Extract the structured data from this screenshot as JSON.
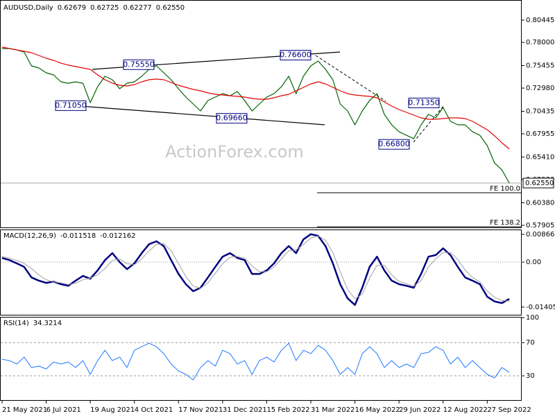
{
  "chart_data": [
    {
      "type": "line",
      "title": "AUDUSD,Daily",
      "header_values": [
        {
          "value": 0.62679,
          "label": "0.62679"
        },
        {
          "value": 0.62725,
          "label": "0.62725"
        },
        {
          "value": 0.62277,
          "label": "0.62277"
        },
        {
          "value": 0.6255,
          "label": "0.62550"
        }
      ],
      "watermark": "ActionForex.com",
      "xlim": [
        0,
        70.5
      ],
      "ylim": [
        0.57677,
        0.82654
      ],
      "yticks": [
        {
          "value": 0.80445,
          "label": "0.80445"
        },
        {
          "value": 0.78,
          "label": "0.78000"
        },
        {
          "value": 0.75455,
          "label": "0.75455"
        },
        {
          "value": 0.7298,
          "label": "0.72980"
        },
        {
          "value": 0.70435,
          "label": "0.70435"
        },
        {
          "value": 0.67955,
          "label": "0.67955"
        },
        {
          "value": 0.6541,
          "label": "0.65410"
        },
        {
          "value": 0.6293,
          "label": "0.62930"
        },
        {
          "value": 0.6038,
          "label": "0.60380"
        },
        {
          "value": 0.57905,
          "label": "0.57905"
        }
      ],
      "series": [
        {
          "color": "#006400",
          "width": 1.2,
          "values": [
            0.7732,
            0.7732,
            0.7717,
            0.7694,
            0.7542,
            0.7519,
            0.7466,
            0.7443,
            0.7367,
            0.7351,
            0.7367,
            0.7351,
            0.7138,
            0.7313,
            0.7428,
            0.739,
            0.7291,
            0.7351,
            0.7367,
            0.7428,
            0.7504,
            0.7542,
            0.7466,
            0.739,
            0.7291,
            0.7199,
            0.7123,
            0.7047,
            0.7161,
            0.7199,
            0.7237,
            0.7214,
            0.726,
            0.7161,
            0.7047,
            0.7123,
            0.7199,
            0.7237,
            0.7313,
            0.7428,
            0.7237,
            0.7428,
            0.7542,
            0.7595,
            0.7504,
            0.739,
            0.7123,
            0.7047,
            0.6895,
            0.7047,
            0.7161,
            0.7237,
            0.7009,
            0.6895,
            0.6818,
            0.678,
            0.6742,
            0.6895,
            0.7009,
            0.6971,
            0.7085,
            0.6933,
            0.6895,
            0.6895,
            0.6818,
            0.678,
            0.6666,
            0.6475,
            0.6399,
            0.6255
          ]
        },
        {
          "color": "#e00000",
          "width": 1.2,
          "values": [
            0.7748,
            0.7732,
            0.7717,
            0.7702,
            0.7687,
            0.7656,
            0.7626,
            0.7603,
            0.7572,
            0.755,
            0.7534,
            0.7519,
            0.7504,
            0.7443,
            0.739,
            0.7352,
            0.7329,
            0.7321,
            0.7336,
            0.7367,
            0.739,
            0.7397,
            0.739,
            0.7359,
            0.7329,
            0.7306,
            0.7283,
            0.7268,
            0.7245,
            0.723,
            0.7222,
            0.7214,
            0.7207,
            0.7199,
            0.7184,
            0.7176,
            0.7176,
            0.7192,
            0.7214,
            0.723,
            0.7268,
            0.7306,
            0.7344,
            0.7367,
            0.7344,
            0.7306,
            0.7268,
            0.7237,
            0.7222,
            0.7214,
            0.7207,
            0.7192,
            0.7146,
            0.71,
            0.7062,
            0.7032,
            0.7001,
            0.6971,
            0.6956,
            0.6956,
            0.6963,
            0.6971,
            0.6971,
            0.6963,
            0.6933,
            0.6887,
            0.6841,
            0.6773,
            0.6697,
            0.6628
          ]
        }
      ],
      "annotations": [
        {
          "value": 0.7555,
          "label": "0.75550"
        },
        {
          "value": 0.766,
          "label": "0.76600"
        },
        {
          "value": 0.7105,
          "label": "0.71050"
        },
        {
          "value": 0.6966,
          "label": "0.69660"
        },
        {
          "value": 0.7135,
          "label": "0.71350"
        },
        {
          "value": 0.668,
          "label": "0.66800"
        }
      ],
      "levels": [
        {
          "value": 0.6148,
          "label": "FE 100.0"
        },
        {
          "value": 0.5775,
          "label": "FE 138.2"
        }
      ],
      "last_price": {
        "value": 0.6255,
        "label": "0.62550"
      }
    },
    {
      "type": "line",
      "title": "MACD(12,26,9)",
      "header_values": [
        -0.011518,
        -0.012162
      ],
      "xlim": [
        0,
        70.5
      ],
      "ylim": [
        -0.01667,
        0.01018
      ],
      "yticks": [
        0.008662,
        {
          "value": 0,
          "label": "0.00"
        },
        -0.014055
      ],
      "series": [
        {
          "color": "#000080",
          "width": 2.5,
          "values": [
            0.0013,
            0.0006,
            -0.0004,
            -0.0015,
            -0.0048,
            -0.0058,
            -0.0065,
            -0.0061,
            -0.0069,
            -0.0074,
            -0.0058,
            -0.0043,
            -0.0052,
            -0.0026,
            0.0006,
            0.0028,
            0,
            -0.0022,
            -0.0004,
            0.0028,
            0.0056,
            0.0065,
            0.005,
            0.0006,
            -0.0037,
            -0.0069,
            -0.0091,
            -0.008,
            -0.0048,
            -0.0015,
            0.0017,
            0.0028,
            0.0013,
            0.0006,
            -0.0037,
            -0.0037,
            -0.0026,
            -0.0004,
            0.0028,
            0.005,
            0.0028,
            0.0071,
            0.0087,
            0.0082,
            0.005,
            -0.0004,
            -0.0069,
            -0.0113,
            -0.0134,
            -0.008,
            -0.0015,
            0.0017,
            -0.0026,
            -0.0058,
            -0.0069,
            -0.0074,
            -0.008,
            -0.0037,
            0.0017,
            0.0022,
            0.0043,
            0.0022,
            -0.0015,
            -0.0048,
            -0.0058,
            -0.0069,
            -0.0108,
            -0.0123,
            -0.0128,
            -0.0115
          ]
        },
        {
          "color": "#a0a0a0",
          "width": 1,
          "values": [
            0.0018,
            0.0012,
            0.0005,
            -0.0004,
            -0.002,
            -0.004,
            -0.0055,
            -0.0062,
            -0.0065,
            -0.007,
            -0.0066,
            -0.0055,
            -0.005,
            -0.004,
            -0.002,
            0.0005,
            0.001,
            -0.0005,
            -0.0008,
            0.001,
            0.0035,
            0.0055,
            0.0058,
            0.0035,
            -0.0005,
            -0.0045,
            -0.0075,
            -0.0082,
            -0.0065,
            -0.0035,
            -0.0005,
            0.0015,
            0.0018,
            0.0012,
            -0.0012,
            -0.003,
            -0.003,
            -0.0015,
            0.001,
            0.0035,
            0.0038,
            0.0055,
            0.0075,
            0.0082,
            0.0068,
            0.003,
            -0.003,
            -0.0085,
            -0.0115,
            -0.01,
            -0.005,
            -0.001,
            -0.001,
            -0.004,
            -0.006,
            -0.0068,
            -0.0075,
            -0.0058,
            -0.0015,
            0.001,
            0.003,
            0.003,
            0.0008,
            -0.0025,
            -0.0048,
            -0.0062,
            -0.009,
            -0.011,
            -0.012,
            -0.0122
          ]
        }
      ]
    },
    {
      "type": "line",
      "title": "RSI(14)",
      "header_values": [
        34.3214
      ],
      "xlim": [
        0,
        70.5
      ],
      "ylim": [
        0,
        101
      ],
      "yticks": [
        100,
        70,
        30
      ],
      "dashed_levels": [
        70,
        30
      ],
      "xticks": [
        {
          "value": 0,
          "label": "21 May 2021"
        },
        {
          "value": 6,
          "label": "6 Jul 2021"
        },
        {
          "value": 12,
          "label": "19 Aug 2021"
        },
        {
          "value": 18,
          "label": "4 Oct 2021"
        },
        {
          "value": 24,
          "label": "17 Nov 2021"
        },
        {
          "value": 30,
          "label": "31 Dec 2021"
        },
        {
          "value": 36,
          "label": "15 Feb 2022"
        },
        {
          "value": 42,
          "label": "31 Mar 2022"
        },
        {
          "value": 48,
          "label": "16 May 2022"
        },
        {
          "value": 54,
          "label": "29 Jun 2022"
        },
        {
          "value": 60,
          "label": "12 Aug 2022"
        },
        {
          "value": 66,
          "label": "27 Sep 2022"
        }
      ],
      "series": [
        {
          "color": "#1e78ff",
          "width": 1,
          "values": [
            50,
            48.3,
            44.2,
            52.5,
            40,
            41.7,
            38.3,
            46.7,
            44.2,
            46.7,
            40,
            48.3,
            31.7,
            48.3,
            60.8,
            48.3,
            52.5,
            40,
            60.8,
            65,
            69.2,
            65,
            56.7,
            44.2,
            35.8,
            31.7,
            25,
            40,
            48.3,
            41.7,
            60.8,
            56.7,
            44.2,
            48.3,
            31.7,
            48.3,
            52.5,
            46.7,
            60.8,
            69.2,
            48.3,
            60.8,
            56.7,
            66.7,
            60.8,
            48.3,
            31.7,
            40,
            31.7,
            56.7,
            65,
            56.7,
            40,
            48.3,
            40,
            44.2,
            40,
            56.7,
            58.3,
            65,
            60.8,
            44.2,
            52.5,
            40,
            48.3,
            40,
            31.7,
            27.5,
            40,
            34.3
          ]
        }
      ]
    }
  ]
}
